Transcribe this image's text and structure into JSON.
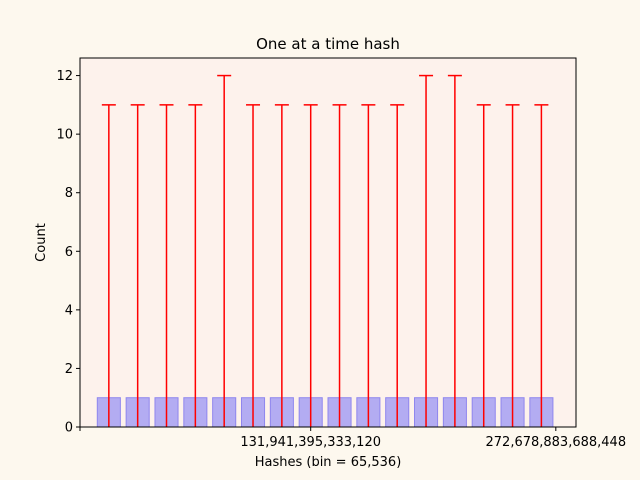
{
  "colors": {
    "figure_bg": "#fdf8ee",
    "axes_bg": "#fdf2ec",
    "bar_fill": "#b3acf2",
    "bar_edge": "#8f86ee",
    "error": "#ff0000"
  },
  "chart_data": {
    "type": "bar",
    "title": "One at a time hash",
    "xlabel": "Hashes (bin = 65,536)",
    "ylabel": "Count",
    "ylim": [
      0,
      12.6
    ],
    "xlim": [
      0,
      17.2
    ],
    "yticks": [
      0,
      2,
      4,
      6,
      8,
      10,
      12
    ],
    "yticklabels": [
      "0",
      "2",
      "4",
      "6",
      "8",
      "10",
      "12"
    ],
    "xticks": [
      {
        "x": 0,
        "label": ""
      },
      {
        "x": 8,
        "label": "131,941,395,333,120"
      },
      {
        "x": 16.5,
        "label": "272,678,883,688,448"
      }
    ],
    "x": [
      1,
      2,
      3,
      4,
      5,
      6,
      7,
      8,
      9,
      10,
      11,
      12,
      13,
      14,
      15,
      16
    ],
    "values": [
      1,
      1,
      1,
      1,
      1,
      1,
      1,
      1,
      1,
      1,
      1,
      1,
      1,
      1,
      1,
      1
    ],
    "error_upper": [
      11,
      11,
      11,
      11,
      12,
      11,
      11,
      11,
      11,
      11,
      11,
      12,
      12,
      11,
      11,
      11
    ],
    "grid": false,
    "legend": "none"
  }
}
